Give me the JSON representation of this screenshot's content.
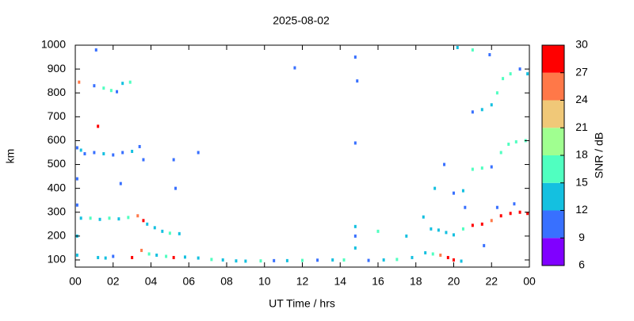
{
  "chart_data": {
    "type": "scatter",
    "title": "2025-08-02",
    "x_label": "UT Time / hrs",
    "y_label": "km",
    "colorbar_label": "SNR / dB",
    "xlim": [
      0,
      24
    ],
    "ylim": [
      70,
      1000
    ],
    "xticks": [
      {
        "value": 0,
        "label": "00"
      },
      {
        "value": 2,
        "label": "02"
      },
      {
        "value": 4,
        "label": "04"
      },
      {
        "value": 6,
        "label": "06"
      },
      {
        "value": 8,
        "label": "08"
      },
      10,
      12,
      14,
      16,
      18,
      20,
      22,
      {
        "value": 24,
        "label": "00"
      }
    ],
    "yticks": [
      100,
      200,
      300,
      400,
      500,
      600,
      700,
      800,
      900,
      1000
    ],
    "clim": [
      6,
      30
    ],
    "cticks": [
      6,
      9,
      12,
      15,
      18,
      21,
      24,
      27,
      30
    ],
    "colorscale": [
      "#8000ff",
      "#3870ff",
      "#14c0e0",
      "#50ffc0",
      "#a0ff90",
      "#f0c878",
      "#ff7848",
      "#ff0000"
    ],
    "x": [
      0.1,
      0.1,
      0.1,
      0.1,
      0.1,
      0.2,
      0.3,
      0.5,
      1.0,
      1.5,
      2.0,
      2.5,
      3.0,
      3.4,
      0.3,
      0.8,
      1.3,
      1.8,
      2.3,
      2.8,
      3.3,
      3.6,
      1.0,
      1.5,
      1.9,
      2.2,
      2.5,
      2.9,
      1.1,
      1.2,
      3.8,
      4.2,
      4.6,
      5.0,
      5.5,
      3.0,
      3.5,
      3.9,
      4.3,
      4.8,
      5.2,
      5.8,
      6.5,
      7.2,
      7.8,
      8.5,
      9.0,
      9.8,
      10.5,
      11.2,
      12.0,
      12.8,
      13.6,
      14.2,
      15.5,
      16.3,
      17.0,
      17.8,
      1.2,
      1.6,
      2.0,
      14.8,
      14.8,
      14.8,
      14.8,
      14.8,
      14.9,
      11.6,
      16.0,
      17.5,
      18.5,
      18.9,
      19.3,
      19.7,
      20.0,
      20.4,
      18.8,
      19.2,
      19.6,
      20.0,
      20.5,
      21.0,
      21.5,
      22.0,
      22.5,
      23.0,
      23.5,
      23.9,
      22.3,
      23.2,
      20.5,
      21.0,
      21.5,
      22.0,
      22.5,
      22.9,
      23.3,
      23.8,
      21.0,
      21.5,
      22.0,
      22.3,
      22.6,
      23.0,
      23.5,
      23.9,
      20.2,
      21.0,
      21.9,
      19.0,
      19.5,
      20.0,
      20.6,
      18.4,
      5.2,
      5.3,
      6.5,
      2.4,
      3.6,
      21.6
    ],
    "y": [
      120,
      200,
      330,
      440,
      570,
      845,
      560,
      545,
      550,
      545,
      540,
      550,
      555,
      575,
      275,
      275,
      270,
      275,
      272,
      278,
      285,
      265,
      830,
      820,
      810,
      805,
      840,
      845,
      980,
      660,
      250,
      235,
      220,
      212,
      210,
      110,
      140,
      125,
      120,
      115,
      110,
      112,
      108,
      102,
      100,
      96,
      95,
      96,
      97,
      97,
      98,
      99,
      100,
      100,
      98,
      100,
      102,
      110,
      110,
      108,
      115,
      150,
      200,
      240,
      590,
      950,
      850,
      905,
      220,
      200,
      130,
      125,
      120,
      110,
      100,
      95,
      230,
      225,
      215,
      205,
      230,
      245,
      250,
      265,
      285,
      295,
      300,
      295,
      320,
      335,
      390,
      480,
      485,
      490,
      550,
      585,
      595,
      600,
      720,
      730,
      750,
      800,
      860,
      880,
      900,
      880,
      990,
      980,
      960,
      400,
      500,
      380,
      320,
      280,
      520,
      400,
      550,
      420,
      520,
      160
    ],
    "snr": [
      12,
      12,
      11,
      11,
      11,
      25,
      12,
      11,
      11,
      12,
      11,
      11,
      12,
      11,
      14,
      15,
      14,
      15,
      14,
      16,
      24,
      28,
      11,
      15,
      16,
      11,
      12,
      16,
      11,
      28,
      13,
      12,
      14,
      15,
      12,
      28,
      25,
      16,
      14,
      15,
      27,
      12,
      14,
      15,
      14,
      14,
      12,
      15,
      11,
      12,
      15,
      11,
      12,
      16,
      11,
      12,
      15,
      14,
      12,
      14,
      11,
      12,
      11,
      12,
      11,
      11,
      11,
      11,
      16,
      12,
      14,
      16,
      25,
      28,
      29,
      12,
      12,
      13,
      12,
      14,
      15,
      28,
      29,
      24,
      28,
      29,
      28,
      28,
      11,
      11,
      12,
      15,
      16,
      11,
      16,
      15,
      16,
      15,
      11,
      14,
      12,
      16,
      17,
      15,
      11,
      12,
      12,
      15,
      11,
      12,
      11,
      11,
      11,
      12,
      11,
      11,
      11,
      11,
      11,
      11
    ]
  }
}
